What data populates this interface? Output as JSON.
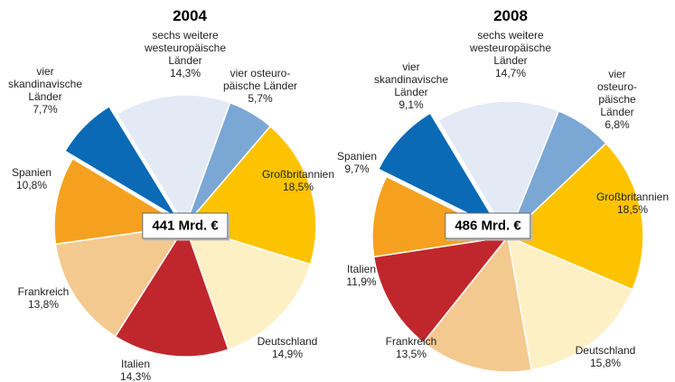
{
  "chart_data": [
    {
      "type": "pie",
      "title": "2004",
      "center_label": "441 Mrd. €",
      "categories": [
        "vier osteuro-\npäische  Länder",
        "Großbritannien",
        "Deutschland",
        "Italien",
        "Frankreich",
        "Spanien",
        "vier\nskandinavische\nLänder",
        "sechs weitere\nwesteuropäische\nLänder"
      ],
      "values": [
        5.7,
        18.5,
        14.9,
        14.3,
        13.8,
        10.8,
        7.7,
        14.3
      ],
      "value_labels": [
        "5,7%",
        "18,5%",
        "14,9%",
        "14,3%",
        "13,8%",
        "10,8%",
        "7,7%",
        "14,3%"
      ],
      "colors": [
        "#7ba7d4",
        "#fdc300",
        "#fdf0c4",
        "#c0272d",
        "#f4c98f",
        "#f5a11f",
        "#0a6ab5",
        "#e3eaf6"
      ]
    },
    {
      "type": "pie",
      "title": "2008",
      "center_label": "486 Mrd. €",
      "categories": [
        "vier osteuro-\npäische Länder",
        "Großbritannien",
        "Deutschland",
        "Frankreich",
        "Italien",
        "Spanien",
        "vier\nskandinavische\nLänder",
        "sechs weitere\nwesteuropäische\nLänder"
      ],
      "values": [
        6.8,
        18.5,
        15.8,
        13.5,
        11.9,
        9.7,
        9.1,
        14.7
      ],
      "value_labels": [
        "6,8%",
        "18,5%",
        "15,8%",
        "13,5%",
        "11,9%",
        "9,7%",
        "9,1%",
        "14,7%"
      ],
      "colors": [
        "#7ba7d4",
        "#fdc300",
        "#fdf0c4",
        "#f4c98f",
        "#c0272d",
        "#f5a11f",
        "#0a6ab5",
        "#e3eaf6"
      ]
    }
  ]
}
